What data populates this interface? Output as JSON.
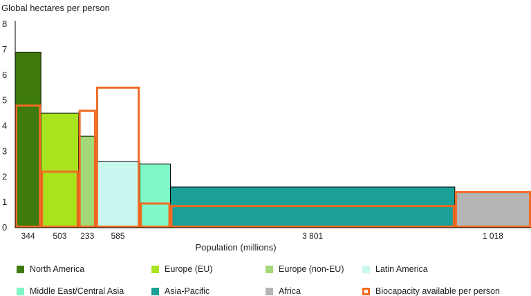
{
  "chart_data": {
    "type": "bar",
    "variant": "variable-width (population-weighted) bars",
    "ylabel": "Global hectares per person",
    "xlabel": "Population (millions)",
    "ylim": [
      0,
      8
    ],
    "yticks": [
      0,
      1,
      2,
      3,
      4,
      5,
      6,
      7,
      8
    ],
    "regions": [
      {
        "name": "North America",
        "population": 344,
        "population_label": "344",
        "footprint": 6.9,
        "biocapacity": 4.8,
        "color": "#3f7a0f"
      },
      {
        "name": "Europe (EU)",
        "population": 503,
        "population_label": "503",
        "footprint": 4.5,
        "biocapacity": 2.2,
        "color": "#a8e31e"
      },
      {
        "name": "Europe (non-EU)",
        "population": 233,
        "population_label": "233",
        "footprint": 3.6,
        "biocapacity": 4.6,
        "color": "#a3d977"
      },
      {
        "name": "Latin America",
        "population": 585,
        "population_label": "585",
        "footprint": 2.6,
        "biocapacity": 5.5,
        "color": "#c8f8ef"
      },
      {
        "name": "Middle East/Central Asia",
        "population": 410,
        "population_label": "",
        "footprint": 2.5,
        "biocapacity": 0.95,
        "color": "#7ff8c5"
      },
      {
        "name": "Asia-Pacific",
        "population": 3801,
        "population_label": "3 801",
        "footprint": 1.6,
        "biocapacity": 0.85,
        "color": "#1aa097"
      },
      {
        "name": "Africa",
        "population": 1018,
        "population_label": "1 018",
        "footprint": 1.4,
        "biocapacity": 1.4,
        "color": "#b5b5b5"
      }
    ],
    "biocapacity_label": "Biocapacity available per person",
    "biocapacity_color": "#f26b22"
  }
}
